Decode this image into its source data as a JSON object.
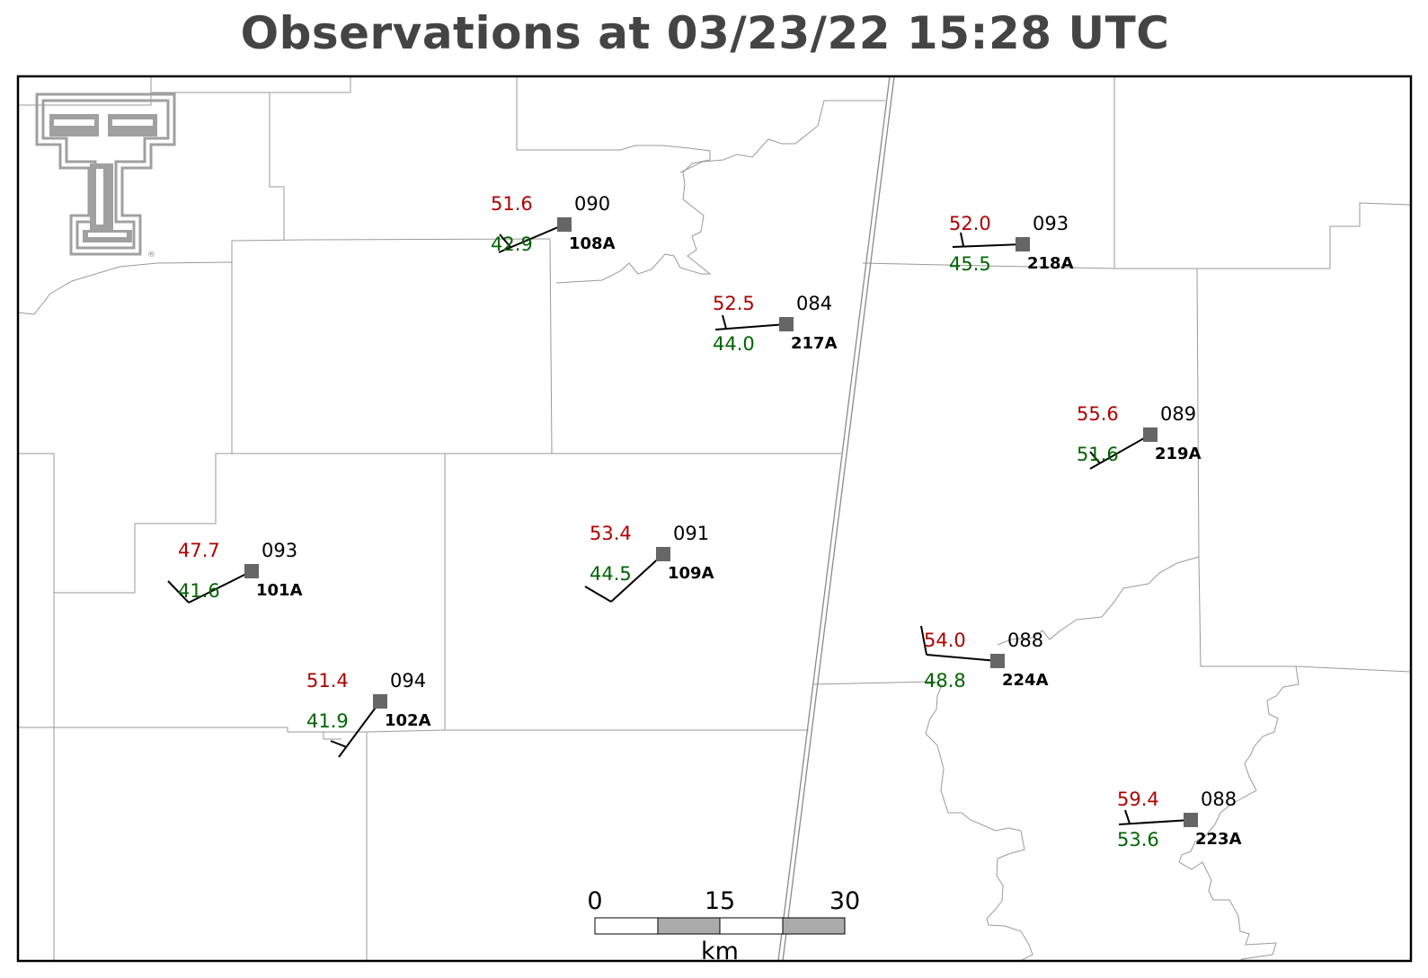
{
  "title": "Observations at 03/23/22 15:28 UTC",
  "colors": {
    "temperature": "#b00000",
    "dewpoint": "#006400",
    "station_marker": "#666666",
    "county_lines": "#9a9a9a",
    "state_line": "#8a8a8a",
    "logo": "#a0a0a0"
  },
  "logo": {
    "icon": "texas-tech-double-t-logo",
    "mark": "®"
  },
  "stations": [
    {
      "id": "108A",
      "temp": "51.6",
      "dewpoint": "42.9",
      "rh": "090"
    },
    {
      "id": "217A",
      "temp": "52.5",
      "dewpoint": "44.0",
      "rh": "084"
    },
    {
      "id": "218A",
      "temp": "52.0",
      "dewpoint": "45.5",
      "rh": "093"
    },
    {
      "id": "219A",
      "temp": "55.6",
      "dewpoint": "51.6",
      "rh": "089"
    },
    {
      "id": "101A",
      "temp": "47.7",
      "dewpoint": "41.6",
      "rh": "093"
    },
    {
      "id": "109A",
      "temp": "53.4",
      "dewpoint": "44.5",
      "rh": "091"
    },
    {
      "id": "224A",
      "temp": "54.0",
      "dewpoint": "48.8",
      "rh": "088"
    },
    {
      "id": "102A",
      "temp": "51.4",
      "dewpoint": "41.9",
      "rh": "094"
    },
    {
      "id": "223A",
      "temp": "59.4",
      "dewpoint": "53.6",
      "rh": "088"
    }
  ],
  "scale_bar": {
    "labels": [
      "0",
      "15",
      "30"
    ],
    "unit": "km"
  }
}
